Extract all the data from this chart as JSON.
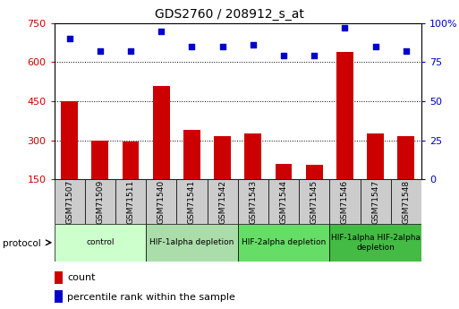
{
  "title": "GDS2760 / 208912_s_at",
  "samples": [
    "GSM71507",
    "GSM71509",
    "GSM71511",
    "GSM71540",
    "GSM71541",
    "GSM71542",
    "GSM71543",
    "GSM71544",
    "GSM71545",
    "GSM71546",
    "GSM71547",
    "GSM71548"
  ],
  "counts": [
    450,
    300,
    295,
    510,
    340,
    315,
    325,
    210,
    205,
    640,
    325,
    315
  ],
  "percentile_ranks": [
    90,
    82,
    82,
    95,
    85,
    85,
    86,
    79,
    79,
    97,
    85,
    82
  ],
  "groups": [
    {
      "label": "control",
      "start": 0,
      "end": 3,
      "color": "#ccffcc"
    },
    {
      "label": "HIF-1alpha depletion",
      "start": 3,
      "end": 6,
      "color": "#aaddaa"
    },
    {
      "label": "HIF-2alpha depletion",
      "start": 6,
      "end": 9,
      "color": "#66dd66"
    },
    {
      "label": "HIF-1alpha HIF-2alpha\ndepletion",
      "start": 9,
      "end": 12,
      "color": "#44bb44"
    }
  ],
  "ylim_left": [
    150,
    750
  ],
  "ylim_right": [
    0,
    100
  ],
  "left_ticks": [
    150,
    300,
    450,
    600,
    750
  ],
  "right_ticks": [
    0,
    25,
    50,
    75,
    100
  ],
  "bar_color": "#cc0000",
  "dot_color": "#0000cc",
  "xtick_bg": "#cccccc"
}
